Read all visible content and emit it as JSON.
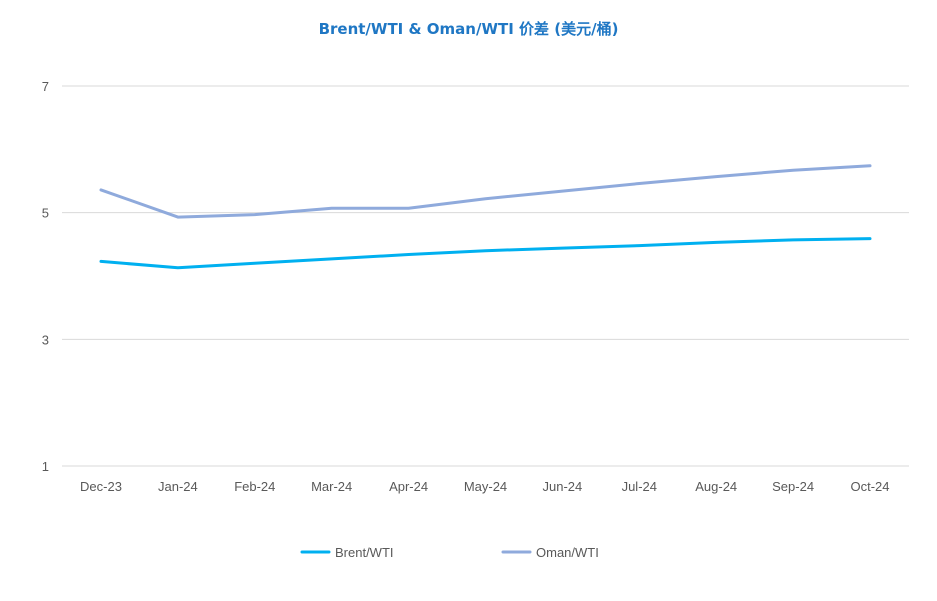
{
  "chart_data": {
    "type": "line",
    "title": "Brent/WTI & Oman/WTI 价差 (美元/桶)",
    "xlabel": "",
    "ylabel": "",
    "categories": [
      "Dec-23",
      "Jan-24",
      "Feb-24",
      "Mar-24",
      "Apr-24",
      "May-24",
      "Jun-24",
      "Jul-24",
      "Aug-24",
      "Sep-24",
      "Oct-24"
    ],
    "yticks": [
      "1",
      "3",
      "5",
      "7"
    ],
    "ylim": [
      1,
      7
    ],
    "grid": true,
    "legend_position": "bottom",
    "series": [
      {
        "name": "Brent/WTI",
        "color": "#00B0F0",
        "values": [
          4.23,
          4.13,
          4.2,
          4.27,
          4.34,
          4.4,
          4.44,
          4.48,
          4.53,
          4.57,
          4.59
        ]
      },
      {
        "name": "Oman/WTI",
        "color": "#8FAADC",
        "values": [
          5.36,
          4.93,
          4.97,
          5.07,
          5.07,
          5.22,
          5.34,
          5.46,
          5.57,
          5.67,
          5.74
        ]
      }
    ]
  }
}
